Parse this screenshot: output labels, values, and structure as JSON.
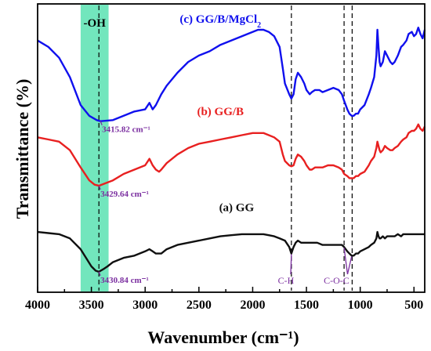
{
  "chart_data": {
    "type": "line",
    "xlabel": "Wavenumber (cm⁻¹)",
    "ylabel": "Transmittance (%)",
    "xlim": [
      4000,
      400
    ],
    "x_reversed": true,
    "x_ticks": [
      "4000",
      "3500",
      "3000",
      "2500",
      "2000",
      "1500",
      "1000",
      "500"
    ],
    "y_ticks_shown": false,
    "oh_band": {
      "label": "-OH",
      "from": 3600,
      "to": 3340,
      "color": "#72e6bd"
    },
    "reference_lines": [
      3430,
      1640,
      1150,
      1075
    ],
    "series": [
      {
        "name": "(c) GG/B/MgCl₂",
        "label_main": "(c) GG/B/MgCl",
        "label_sub": "2",
        "color": "#1010ee",
        "points": [
          [
            4000,
            75
          ],
          [
            3900,
            72
          ],
          [
            3800,
            67
          ],
          [
            3700,
            58
          ],
          [
            3600,
            45
          ],
          [
            3520,
            40
          ],
          [
            3450,
            38
          ],
          [
            3415.82,
            37.5
          ],
          [
            3300,
            38
          ],
          [
            3200,
            40
          ],
          [
            3100,
            42
          ],
          [
            3000,
            43
          ],
          [
            2960,
            46
          ],
          [
            2930,
            43
          ],
          [
            2900,
            45
          ],
          [
            2850,
            50
          ],
          [
            2800,
            54
          ],
          [
            2700,
            60
          ],
          [
            2600,
            65
          ],
          [
            2500,
            68
          ],
          [
            2400,
            70
          ],
          [
            2300,
            73
          ],
          [
            2200,
            75
          ],
          [
            2100,
            77
          ],
          [
            2000,
            79
          ],
          [
            1950,
            80
          ],
          [
            1900,
            80
          ],
          [
            1850,
            79
          ],
          [
            1800,
            77
          ],
          [
            1750,
            72
          ],
          [
            1720,
            62
          ],
          [
            1700,
            55
          ],
          [
            1660,
            50
          ],
          [
            1640,
            48
          ],
          [
            1620,
            50
          ],
          [
            1600,
            57
          ],
          [
            1580,
            60
          ],
          [
            1550,
            58
          ],
          [
            1520,
            55
          ],
          [
            1500,
            52
          ],
          [
            1470,
            50
          ],
          [
            1450,
            51
          ],
          [
            1420,
            52
          ],
          [
            1380,
            52
          ],
          [
            1350,
            51
          ],
          [
            1300,
            52
          ],
          [
            1250,
            53
          ],
          [
            1200,
            52
          ],
          [
            1170,
            50
          ],
          [
            1150,
            47
          ],
          [
            1120,
            43
          ],
          [
            1100,
            41
          ],
          [
            1080,
            40
          ],
          [
            1060,
            40
          ],
          [
            1040,
            41
          ],
          [
            1020,
            41
          ],
          [
            1000,
            43
          ],
          [
            960,
            45
          ],
          [
            920,
            50
          ],
          [
            900,
            53
          ],
          [
            870,
            58
          ],
          [
            850,
            68
          ],
          [
            840,
            80
          ],
          [
            830,
            72
          ],
          [
            820,
            65
          ],
          [
            810,
            63
          ],
          [
            790,
            65
          ],
          [
            770,
            70
          ],
          [
            750,
            68
          ],
          [
            720,
            65
          ],
          [
            700,
            64
          ],
          [
            680,
            65
          ],
          [
            650,
            68
          ],
          [
            620,
            72
          ],
          [
            600,
            73
          ],
          [
            570,
            75
          ],
          [
            550,
            78
          ],
          [
            520,
            79
          ],
          [
            500,
            77
          ],
          [
            480,
            78
          ],
          [
            460,
            81
          ],
          [
            440,
            78
          ],
          [
            420,
            76
          ],
          [
            400,
            80
          ]
        ]
      },
      {
        "name": "(b) GG/B",
        "label_main": "(b) GG/B",
        "label_sub": "",
        "color": "#e82020",
        "points": [
          [
            4000,
            30
          ],
          [
            3900,
            29
          ],
          [
            3800,
            28
          ],
          [
            3700,
            24
          ],
          [
            3600,
            16
          ],
          [
            3520,
            10
          ],
          [
            3470,
            8
          ],
          [
            3429.64,
            7.5
          ],
          [
            3350,
            9
          ],
          [
            3300,
            10
          ],
          [
            3200,
            13
          ],
          [
            3100,
            15
          ],
          [
            3000,
            17
          ],
          [
            2960,
            20
          ],
          [
            2930,
            17
          ],
          [
            2900,
            15
          ],
          [
            2870,
            14
          ],
          [
            2850,
            15
          ],
          [
            2800,
            18
          ],
          [
            2700,
            22
          ],
          [
            2600,
            25
          ],
          [
            2500,
            27
          ],
          [
            2400,
            28
          ],
          [
            2300,
            29
          ],
          [
            2200,
            30
          ],
          [
            2100,
            31
          ],
          [
            2000,
            32
          ],
          [
            1950,
            32
          ],
          [
            1900,
            32
          ],
          [
            1850,
            31
          ],
          [
            1800,
            30
          ],
          [
            1750,
            28
          ],
          [
            1720,
            22
          ],
          [
            1700,
            19
          ],
          [
            1660,
            17
          ],
          [
            1640,
            16.5
          ],
          [
            1620,
            17
          ],
          [
            1600,
            20
          ],
          [
            1580,
            22
          ],
          [
            1550,
            21
          ],
          [
            1520,
            19
          ],
          [
            1500,
            17
          ],
          [
            1470,
            15
          ],
          [
            1450,
            15
          ],
          [
            1420,
            16
          ],
          [
            1380,
            16
          ],
          [
            1350,
            16
          ],
          [
            1300,
            17
          ],
          [
            1250,
            17
          ],
          [
            1200,
            16
          ],
          [
            1170,
            15
          ],
          [
            1150,
            13
          ],
          [
            1120,
            12
          ],
          [
            1100,
            11
          ],
          [
            1080,
            11
          ],
          [
            1060,
            11
          ],
          [
            1040,
            12
          ],
          [
            1020,
            12
          ],
          [
            1000,
            13
          ],
          [
            960,
            14
          ],
          [
            920,
            17
          ],
          [
            900,
            19
          ],
          [
            870,
            21
          ],
          [
            850,
            25
          ],
          [
            840,
            28
          ],
          [
            830,
            26
          ],
          [
            820,
            24
          ],
          [
            810,
            23
          ],
          [
            790,
            24
          ],
          [
            770,
            26
          ],
          [
            750,
            25
          ],
          [
            720,
            24
          ],
          [
            700,
            24
          ],
          [
            680,
            25
          ],
          [
            650,
            26
          ],
          [
            620,
            28
          ],
          [
            600,
            29
          ],
          [
            570,
            30
          ],
          [
            550,
            32
          ],
          [
            520,
            33
          ],
          [
            500,
            33
          ],
          [
            480,
            34
          ],
          [
            460,
            36
          ],
          [
            440,
            34
          ],
          [
            420,
            33
          ],
          [
            400,
            35
          ]
        ]
      },
      {
        "name": "(a) GG",
        "label_main": "(a) GG",
        "label_sub": "",
        "color": "#101010",
        "points": [
          [
            4000,
            -14
          ],
          [
            3900,
            -14.5
          ],
          [
            3800,
            -15
          ],
          [
            3700,
            -17
          ],
          [
            3600,
            -22
          ],
          [
            3550,
            -26
          ],
          [
            3500,
            -30
          ],
          [
            3460,
            -32
          ],
          [
            3430.84,
            -32.5
          ],
          [
            3380,
            -31
          ],
          [
            3350,
            -30
          ],
          [
            3300,
            -28
          ],
          [
            3200,
            -26
          ],
          [
            3100,
            -25
          ],
          [
            3000,
            -23
          ],
          [
            2960,
            -22
          ],
          [
            2930,
            -23
          ],
          [
            2900,
            -24
          ],
          [
            2850,
            -24
          ],
          [
            2800,
            -22
          ],
          [
            2700,
            -20
          ],
          [
            2600,
            -19
          ],
          [
            2500,
            -18
          ],
          [
            2400,
            -17
          ],
          [
            2300,
            -16
          ],
          [
            2200,
            -15.5
          ],
          [
            2100,
            -15
          ],
          [
            2000,
            -15
          ],
          [
            1900,
            -15
          ],
          [
            1850,
            -15.5
          ],
          [
            1800,
            -16
          ],
          [
            1750,
            -17
          ],
          [
            1700,
            -18
          ],
          [
            1660,
            -21
          ],
          [
            1640,
            -24
          ],
          [
            1620,
            -21
          ],
          [
            1600,
            -19
          ],
          [
            1580,
            -18
          ],
          [
            1550,
            -19
          ],
          [
            1500,
            -19
          ],
          [
            1450,
            -19
          ],
          [
            1400,
            -19
          ],
          [
            1350,
            -20
          ],
          [
            1300,
            -20
          ],
          [
            1250,
            -20
          ],
          [
            1200,
            -20
          ],
          [
            1170,
            -20
          ],
          [
            1150,
            -21
          ],
          [
            1120,
            -23
          ],
          [
            1100,
            -24
          ],
          [
            1080,
            -25
          ],
          [
            1060,
            -25
          ],
          [
            1040,
            -24
          ],
          [
            1020,
            -24
          ],
          [
            1000,
            -23
          ],
          [
            960,
            -22
          ],
          [
            920,
            -21
          ],
          [
            900,
            -20
          ],
          [
            870,
            -19
          ],
          [
            850,
            -17
          ],
          [
            840,
            -14
          ],
          [
            830,
            -16
          ],
          [
            820,
            -17
          ],
          [
            810,
            -17
          ],
          [
            790,
            -16
          ],
          [
            770,
            -17
          ],
          [
            750,
            -16
          ],
          [
            720,
            -16
          ],
          [
            700,
            -16
          ],
          [
            680,
            -16
          ],
          [
            650,
            -15
          ],
          [
            620,
            -16
          ],
          [
            600,
            -15
          ],
          [
            570,
            -15
          ],
          [
            550,
            -15
          ],
          [
            520,
            -15
          ],
          [
            500,
            -15
          ],
          [
            480,
            -15
          ],
          [
            460,
            -15
          ],
          [
            440,
            -15
          ],
          [
            420,
            -15
          ],
          [
            400,
            -15
          ]
        ]
      }
    ],
    "peak_annotations": [
      {
        "series": 0,
        "x": 3415.82,
        "label": "3415.82 cm⁻¹"
      },
      {
        "series": 1,
        "x": 3429.64,
        "label": "3429.64 cm⁻¹"
      },
      {
        "series": 2,
        "x": 3430.84,
        "label": "3430.84 cm⁻¹"
      }
    ],
    "functional_groups": [
      {
        "label": "C-H",
        "targets": [
          1640
        ]
      },
      {
        "label": "C-O-C",
        "targets": [
          1150,
          1080
        ]
      }
    ]
  }
}
